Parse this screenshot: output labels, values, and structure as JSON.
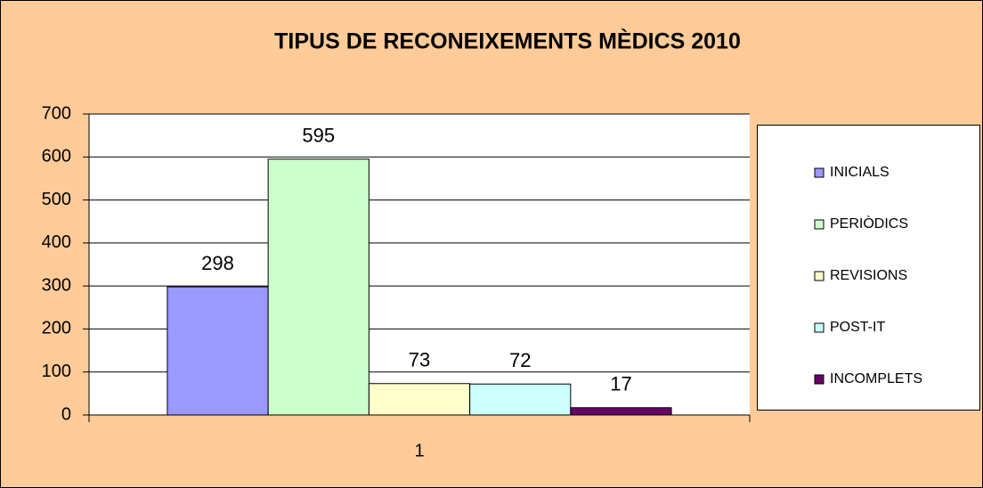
{
  "chart_data": {
    "type": "bar",
    "title": "TIPUS DE RECONEIXEMENTS MÈDICS 2010",
    "categories": [
      "1"
    ],
    "series": [
      {
        "name": "INICIALS",
        "color": "#9999ff",
        "values": [
          298
        ]
      },
      {
        "name": "PERIÒDICS",
        "color": "#ccffcc",
        "values": [
          595
        ]
      },
      {
        "name": "REVISIONS",
        "color": "#ffffcc",
        "values": [
          73
        ]
      },
      {
        "name": "POST-IT",
        "color": "#ccffff",
        "values": [
          72
        ]
      },
      {
        "name": "INCOMPLETS",
        "color": "#660066",
        "values": [
          17
        ]
      }
    ],
    "ylim": [
      0,
      700
    ],
    "yticks": [
      0,
      100,
      200,
      300,
      400,
      500,
      600,
      700
    ],
    "grid": true,
    "legend": "right"
  }
}
